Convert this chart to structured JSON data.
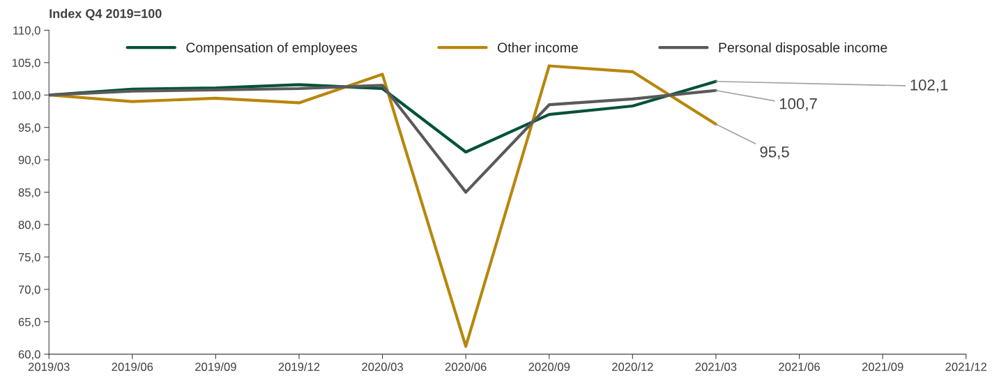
{
  "chart_data": {
    "type": "line",
    "ylabel": "Index Q4 2019=100",
    "categories": [
      "2019/03",
      "2019/06",
      "2019/09",
      "2019/12",
      "2020/03",
      "2020/06",
      "2020/09",
      "2020/12",
      "2021/03",
      "2021/06",
      "2021/09",
      "2021/12"
    ],
    "series": [
      {
        "name": "Compensation of employees",
        "color": "#00523a",
        "values": [
          100.0,
          100.9,
          101.1,
          101.6,
          101.0,
          91.2,
          97.0,
          98.3,
          102.1,
          null,
          null,
          null
        ]
      },
      {
        "name": "Other income",
        "color": "#b8860b",
        "values": [
          100.0,
          99.0,
          99.5,
          98.8,
          103.2,
          61.2,
          104.5,
          103.6,
          95.5,
          null,
          null,
          null
        ]
      },
      {
        "name": "Personal disposable income",
        "color": "#5a5a5a",
        "values": [
          100.0,
          100.6,
          100.8,
          101.0,
          101.5,
          85.0,
          98.5,
          99.4,
          100.7,
          null,
          null,
          null
        ]
      }
    ],
    "ylim": [
      60,
      110
    ],
    "yticks": [
      {
        "value": 60,
        "label": "60,0"
      },
      {
        "value": 65,
        "label": "65,0"
      },
      {
        "value": 70,
        "label": "70,0"
      },
      {
        "value": 75,
        "label": "75,0"
      },
      {
        "value": 80,
        "label": "80,0"
      },
      {
        "value": 85,
        "label": "85,0"
      },
      {
        "value": 90,
        "label": "90,0"
      },
      {
        "value": 95,
        "label": "95,0"
      },
      {
        "value": 100,
        "label": "100,0"
      },
      {
        "value": 105,
        "label": "105,0"
      },
      {
        "value": 110,
        "label": "110,0"
      }
    ],
    "annotations": [
      {
        "text": "102,1",
        "x": "2021/03",
        "y": 102.1
      },
      {
        "text": "100,7",
        "x": "2021/03",
        "y": 100.7
      },
      {
        "text": "95,5",
        "x": "2021/03",
        "y": 95.5
      }
    ],
    "legend": "top",
    "grid": false,
    "marker": "none",
    "line_style": "solid"
  }
}
